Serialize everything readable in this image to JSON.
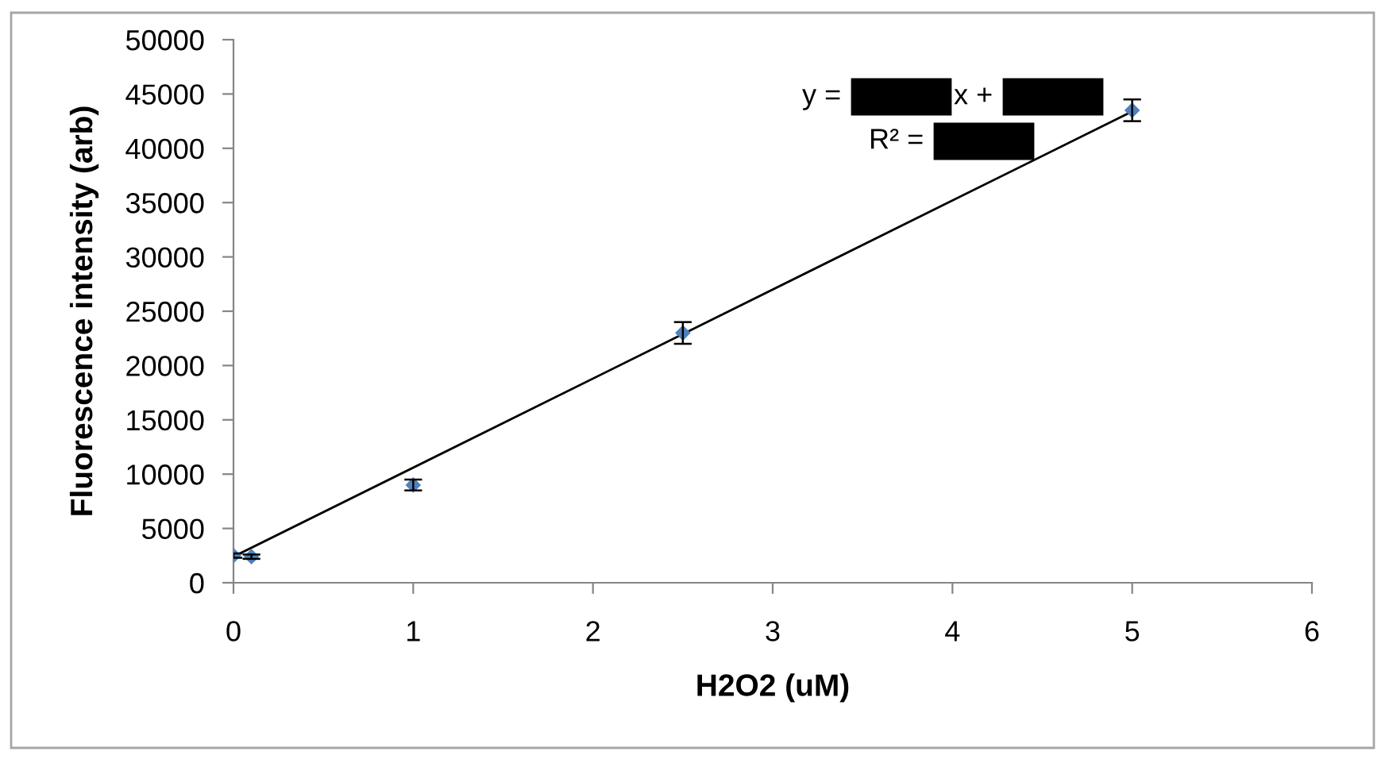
{
  "chart_data": {
    "type": "scatter",
    "xlabel": "H2O2 (uM)",
    "ylabel": "Fluorescence intensity (arb)",
    "xlim": [
      0,
      6
    ],
    "ylim": [
      0,
      50000
    ],
    "xticks": [
      0,
      1,
      2,
      3,
      4,
      5,
      6
    ],
    "yticks": [
      0,
      5000,
      10000,
      15000,
      20000,
      25000,
      30000,
      35000,
      40000,
      45000,
      50000
    ],
    "grid": false,
    "marker": "diamond",
    "series": [
      {
        "color": "#4f81bd",
        "x": [
          0,
          0.1,
          1,
          2.5,
          5
        ],
        "values": [
          2500,
          2400,
          9000,
          23000,
          43500
        ],
        "errors": [
          200,
          200,
          500,
          1000,
          1000
        ]
      },
      {
        "type": "line",
        "color": "#000000",
        "marker": "none",
        "x": [
          0,
          5
        ],
        "values": [
          2400,
          43400
        ]
      }
    ],
    "annotations": [
      "y = ",
      "x + ",
      "R² = "
    ]
  }
}
